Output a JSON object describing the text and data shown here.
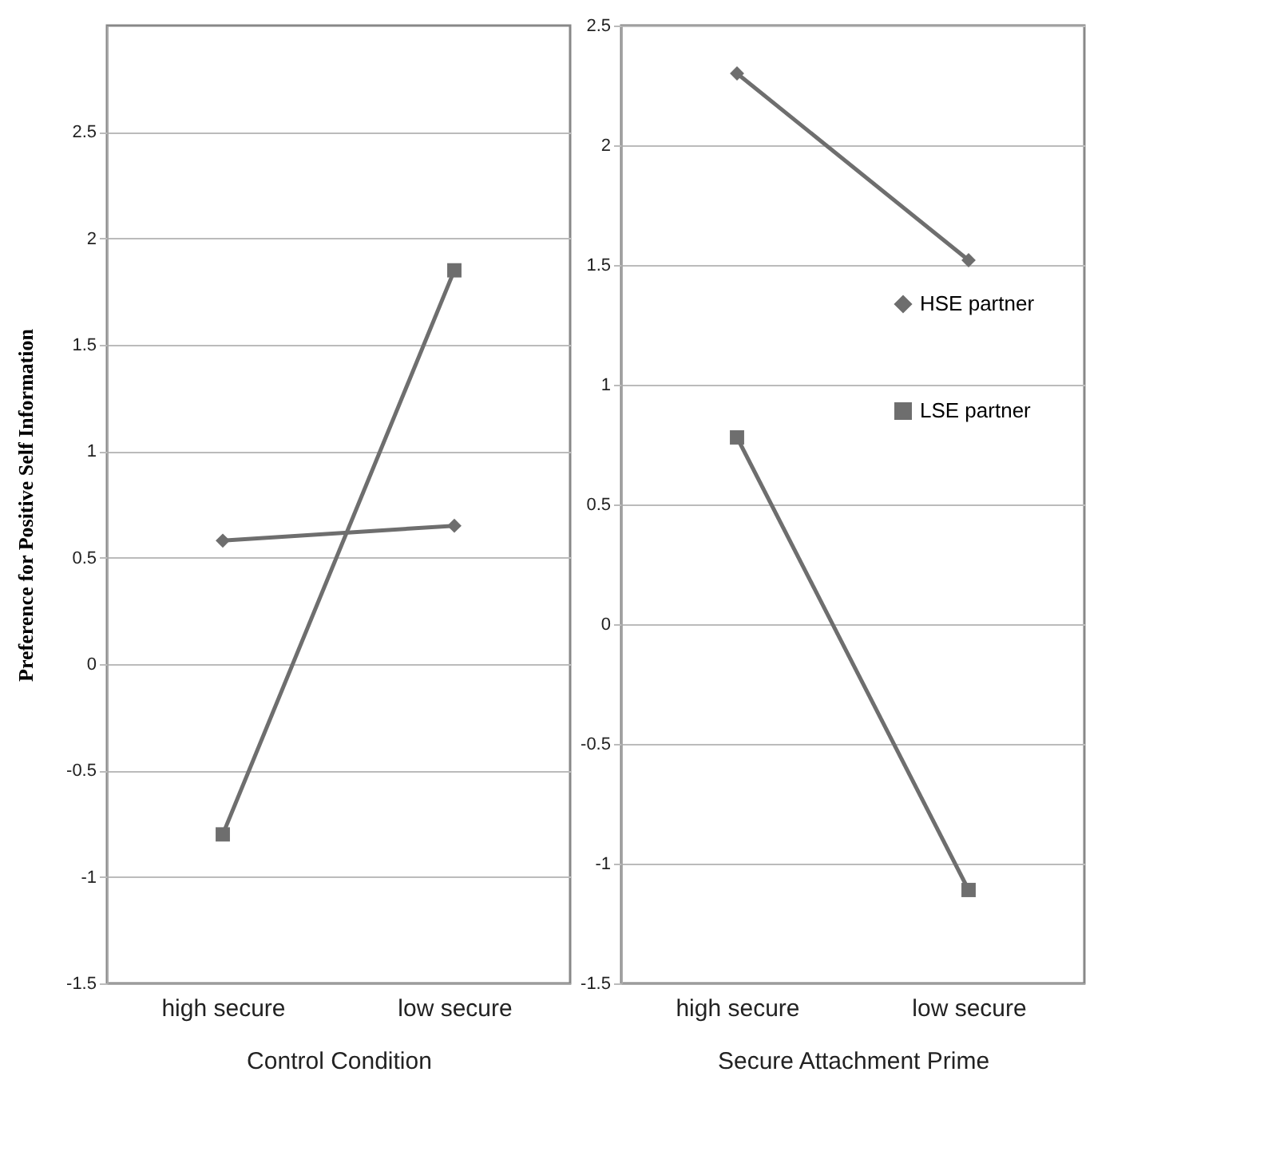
{
  "chart_data": [
    {
      "type": "line",
      "xlabel": "Control Condition",
      "ylabel": "Preference for Positive Self Information",
      "categories": [
        "high secure",
        "low secure"
      ],
      "ylim": [
        -1.5,
        3
      ],
      "yticks": [
        -1.5,
        -1,
        -0.5,
        0,
        0.5,
        1,
        1.5,
        2,
        2.5
      ],
      "grid": "y",
      "series": [
        {
          "color": "#6e6e6e",
          "marker": "diamond",
          "values": [
            0.58,
            0.65
          ]
        },
        {
          "color": "#6e6e6e",
          "marker": "square",
          "values": [
            -0.8,
            1.85
          ]
        }
      ]
    },
    {
      "type": "line",
      "xlabel": "Secure Attachment Prime",
      "categories": [
        "high secure",
        "low secure"
      ],
      "ylim": [
        -1.5,
        2.5
      ],
      "yticks": [
        -1.5,
        -1,
        -0.5,
        0,
        0.5,
        1,
        1.5,
        2,
        2.5
      ],
      "grid": "y",
      "legend": "right",
      "series": [
        {
          "name": "HSE partner",
          "color": "#6e6e6e",
          "marker": "diamond",
          "values": [
            2.3,
            1.52
          ]
        },
        {
          "name": "LSE partner",
          "color": "#6e6e6e",
          "marker": "square",
          "values": [
            0.78,
            -1.11
          ]
        }
      ]
    }
  ]
}
